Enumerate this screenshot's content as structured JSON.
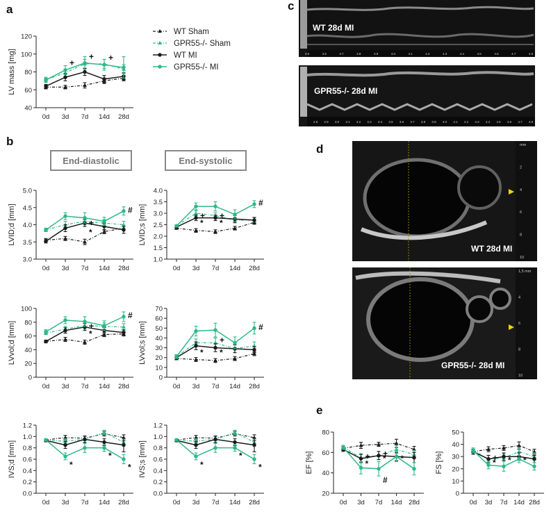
{
  "colors": {
    "black": "#1a1a1a",
    "green": "#2db88a",
    "gray": "#7a7a7a"
  },
  "panel_letters": {
    "a": "a",
    "b": "b",
    "c": "c",
    "d": "d",
    "e": "e"
  },
  "section_headers": {
    "end_diastolic": "End-diastolic",
    "end_systolic": "End-systolic"
  },
  "legend": [
    {
      "label": "WT Sham",
      "series": "wt_sham"
    },
    {
      "label": "GPR55-/- Sham",
      "series": "ko_sham"
    },
    {
      "label": "WT MI",
      "series": "wt_mi"
    },
    {
      "label": "GPR55-/- MI",
      "series": "ko_mi"
    }
  ],
  "echo_images": {
    "mmode_wt": "WT 28d MI",
    "mmode_ko": "GPR55-/- 28d MI",
    "bmode_wt": "WT 28d MI",
    "bmode_ko": "GPR55-/- 28d MI",
    "mmode_top_ticks": [
      "3.5",
      "3.6",
      "3.7",
      "3.8",
      "3.9",
      "4.0",
      "4.1",
      "4.2",
      "4.3",
      "4.4",
      "4.5",
      "4.6",
      "4.7",
      "4.8"
    ],
    "mmode_bottom_ticks": [
      "2.8",
      "2.9",
      "3.0",
      "3.1",
      "3.2",
      "3.3",
      "3.4",
      "3.5",
      "3.6",
      "3.7",
      "3.8",
      "3.9",
      "4.0",
      "4.1",
      "4.2",
      "4.3",
      "4.4",
      "4.5",
      "4.6",
      "4.7",
      "4.8"
    ],
    "bmode_top_scale": [
      "mm",
      "2",
      "4",
      "6",
      "8",
      "10"
    ],
    "bmode_bottom_scale": [
      "1,5 mm",
      "4",
      "6",
      "8",
      "10"
    ]
  },
  "chart_data": [
    {
      "id": "lvmass",
      "type": "line",
      "ylabel": "LV mass [mg]",
      "categories": [
        "0d",
        "3d",
        "7d",
        "14d",
        "28d"
      ],
      "ylim": [
        40,
        120
      ],
      "yticks": [
        "40",
        "60",
        "80",
        "100",
        "120"
      ],
      "series": [
        {
          "name": "WT Sham",
          "key": "wt_sham",
          "values": [
            63,
            63,
            65,
            70,
            73
          ],
          "err": [
            2,
            2,
            3,
            3,
            3
          ]
        },
        {
          "name": "GPR55-/- Sham",
          "key": "ko_sham",
          "values": [
            71,
            79,
            89,
            89,
            83
          ],
          "err": [
            2,
            4,
            5,
            5,
            5
          ]
        },
        {
          "name": "WT MI",
          "key": "wt_mi",
          "values": [
            64,
            74,
            80,
            72,
            75
          ],
          "err": [
            2,
            4,
            4,
            4,
            4
          ]
        },
        {
          "name": "GPR55-/- MI",
          "key": "ko_mi",
          "values": [
            71,
            82,
            90,
            88,
            85
          ],
          "err": [
            3,
            5,
            7,
            6,
            12
          ]
        }
      ],
      "annotations": [
        {
          "text": "+",
          "x": 1,
          "y": 90
        },
        {
          "text": "+",
          "x": 2,
          "y": 97
        },
        {
          "text": "+",
          "x": 3,
          "y": 96
        }
      ]
    },
    {
      "id": "lvidd",
      "type": "line",
      "ylabel": "LVID;d [mm]",
      "categories": [
        "0d",
        "3d",
        "7d",
        "14d",
        "28d"
      ],
      "ylim": [
        3.0,
        5.0
      ],
      "yticks": [
        "3.0",
        "3.5",
        "4.0",
        "4.5",
        "5.0"
      ],
      "series": [
        {
          "name": "WT Sham",
          "key": "wt_sham",
          "values": [
            3.55,
            3.6,
            3.5,
            3.8,
            3.9
          ],
          "err": [
            0.05,
            0.06,
            0.08,
            0.06,
            0.06
          ]
        },
        {
          "name": "GPR55-/- Sham",
          "key": "ko_sham",
          "values": [
            3.85,
            4.0,
            4.1,
            4.05,
            4.0
          ],
          "err": [
            0.05,
            0.1,
            0.1,
            0.1,
            0.1
          ]
        },
        {
          "name": "WT MI",
          "key": "wt_mi",
          "values": [
            3.52,
            3.9,
            4.05,
            3.95,
            3.85
          ],
          "err": [
            0.05,
            0.1,
            0.1,
            0.1,
            0.1
          ]
        },
        {
          "name": "GPR55-/- MI",
          "key": "ko_mi",
          "values": [
            3.85,
            4.25,
            4.2,
            4.1,
            4.4
          ],
          "err": [
            0.05,
            0.1,
            0.15,
            0.12,
            0.12
          ]
        }
      ],
      "annotations": [
        {
          "text": "+",
          "x": 2,
          "y": 4.05
        },
        {
          "text": "*",
          "x": 2,
          "y": 3.78
        },
        {
          "text": "#",
          "x": 4,
          "y": 4.42
        }
      ]
    },
    {
      "id": "lvids",
      "type": "line",
      "ylabel": "LVID;s [mm]",
      "categories": [
        "0d",
        "3d",
        "7d",
        "14d",
        "28d"
      ],
      "ylim": [
        1.0,
        4.0
      ],
      "yticks": [
        "1.0",
        "1.5",
        "2.0",
        "2.5",
        "3.0",
        "3.5",
        "4.0"
      ],
      "series": [
        {
          "name": "WT Sham",
          "key": "wt_sham",
          "values": [
            2.35,
            2.25,
            2.2,
            2.35,
            2.6
          ],
          "err": [
            0.05,
            0.08,
            0.08,
            0.08,
            0.08
          ]
        },
        {
          "name": "GPR55-/- Sham",
          "key": "ko_sham",
          "values": [
            2.45,
            3.0,
            2.9,
            2.7,
            2.7
          ],
          "err": [
            0.05,
            0.12,
            0.12,
            0.12,
            0.1
          ]
        },
        {
          "name": "WT MI",
          "key": "wt_mi",
          "values": [
            2.4,
            2.8,
            2.8,
            2.75,
            2.7
          ],
          "err": [
            0.05,
            0.12,
            0.12,
            0.15,
            0.12
          ]
        },
        {
          "name": "GPR55-/- MI",
          "key": "ko_mi",
          "values": [
            2.45,
            3.3,
            3.3,
            2.95,
            3.4
          ],
          "err": [
            0.05,
            0.15,
            0.2,
            0.2,
            0.15
          ]
        }
      ],
      "annotations": [
        {
          "text": "+",
          "x": 1,
          "y": 2.9
        },
        {
          "text": "*",
          "x": 1,
          "y": 2.58
        },
        {
          "text": "+",
          "x": 2,
          "y": 2.9
        },
        {
          "text": "*",
          "x": 2,
          "y": 2.58
        },
        {
          "text": "#",
          "x": 4,
          "y": 3.45
        }
      ]
    },
    {
      "id": "lvvold",
      "type": "line",
      "ylabel": "LVvol;d [mm]",
      "categories": [
        "0d",
        "3d",
        "7d",
        "14d",
        "28d"
      ],
      "ylim": [
        0,
        100
      ],
      "yticks": [
        "0",
        "20",
        "40",
        "60",
        "80",
        "100"
      ],
      "series": [
        {
          "name": "WT Sham",
          "key": "wt_sham",
          "values": [
            52,
            55,
            51,
            62,
            63
          ],
          "err": [
            2,
            3,
            3,
            3,
            3
          ]
        },
        {
          "name": "GPR55-/- Sham",
          "key": "ko_sham",
          "values": [
            64,
            70,
            75,
            74,
            73
          ],
          "err": [
            2,
            4,
            5,
            5,
            5
          ]
        },
        {
          "name": "WT MI",
          "key": "wt_mi",
          "values": [
            52,
            68,
            73,
            68,
            65
          ],
          "err": [
            2,
            4,
            5,
            5,
            4
          ]
        },
        {
          "name": "GPR55-/- MI",
          "key": "ko_mi",
          "values": [
            66,
            83,
            81,
            75,
            88
          ],
          "err": [
            3,
            5,
            7,
            7,
            7
          ]
        }
      ],
      "annotations": [
        {
          "text": "+",
          "x": 2,
          "y": 74
        },
        {
          "text": "*",
          "x": 2,
          "y": 63
        },
        {
          "text": "#",
          "x": 4,
          "y": 90
        }
      ]
    },
    {
      "id": "lvvols",
      "type": "line",
      "ylabel": "LVvol;s [mm]",
      "categories": [
        "0d",
        "3d",
        "7d",
        "14d",
        "28d"
      ],
      "ylim": [
        0,
        70
      ],
      "yticks": [
        "0",
        "10",
        "20",
        "30",
        "40",
        "50",
        "60",
        "70"
      ],
      "series": [
        {
          "name": "WT Sham",
          "key": "wt_sham",
          "values": [
            19,
            18,
            17,
            19,
            24
          ],
          "err": [
            1,
            2,
            2,
            2,
            2
          ]
        },
        {
          "name": "GPR55-/- Sham",
          "key": "ko_sham",
          "values": [
            21,
            35,
            35,
            29,
            32
          ],
          "err": [
            2,
            4,
            5,
            4,
            4
          ]
        },
        {
          "name": "WT MI",
          "key": "wt_mi",
          "values": [
            20,
            32,
            30,
            29,
            28
          ],
          "err": [
            2,
            4,
            4,
            4,
            3
          ]
        },
        {
          "name": "GPR55-/- MI",
          "key": "ko_mi",
          "values": [
            21,
            47,
            48,
            35,
            50
          ],
          "err": [
            2,
            5,
            7,
            6,
            6
          ]
        }
      ],
      "annotations": [
        {
          "text": "*",
          "x": 1,
          "y": 25
        },
        {
          "text": "+",
          "x": 2,
          "y": 38
        },
        {
          "text": "*",
          "x": 2,
          "y": 25
        },
        {
          "text": "#",
          "x": 4,
          "y": 51
        }
      ]
    },
    {
      "id": "ivsd",
      "type": "line",
      "ylabel": "IVS;d [mm]",
      "categories": [
        "0d",
        "3d",
        "7d",
        "14d",
        "28d"
      ],
      "ylim": [
        0.0,
        1.2
      ],
      "yticks": [
        "0.0",
        "0.2",
        "0.4",
        "0.6",
        "0.8",
        "1.0",
        "1.2"
      ],
      "series": [
        {
          "name": "WT Sham",
          "key": "wt_sham",
          "values": [
            0.94,
            0.98,
            0.97,
            1.05,
            0.98
          ],
          "err": [
            0.02,
            0.04,
            0.04,
            0.04,
            0.05
          ]
        },
        {
          "name": "GPR55-/- Sham",
          "key": "ko_sham",
          "values": [
            0.93,
            0.92,
            0.95,
            1.07,
            0.9
          ],
          "err": [
            0.02,
            0.04,
            0.05,
            0.04,
            0.06
          ]
        },
        {
          "name": "WT MI",
          "key": "wt_mi",
          "values": [
            0.93,
            0.85,
            0.95,
            0.9,
            0.85
          ],
          "err": [
            0.02,
            0.06,
            0.06,
            0.06,
            0.12
          ]
        },
        {
          "name": "GPR55-/- MI",
          "key": "ko_mi",
          "values": [
            0.94,
            0.65,
            0.8,
            0.8,
            0.6
          ],
          "err": [
            0.02,
            0.06,
            0.08,
            0.06,
            0.08
          ]
        }
      ],
      "annotations": [
        {
          "text": "*",
          "x": 1,
          "y": 0.5
        },
        {
          "text": "*",
          "x": 3,
          "y": 0.66
        },
        {
          "text": "*",
          "x": 4,
          "y": 0.46
        }
      ]
    },
    {
      "id": "ivss",
      "type": "line",
      "ylabel": "IVS;s [mm]",
      "categories": [
        "0d",
        "3d",
        "7d",
        "14d",
        "28d"
      ],
      "ylim": [
        0.0,
        1.2
      ],
      "yticks": [
        "0.0",
        "0.2",
        "0.4",
        "0.6",
        "0.8",
        "1.0",
        "1.2"
      ],
      "series": [
        {
          "name": "WT Sham",
          "key": "wt_sham",
          "values": [
            0.94,
            0.98,
            0.97,
            1.05,
            0.98
          ],
          "err": [
            0.02,
            0.04,
            0.04,
            0.04,
            0.05
          ]
        },
        {
          "name": "GPR55-/- Sham",
          "key": "ko_sham",
          "values": [
            0.93,
            0.92,
            0.95,
            1.07,
            0.9
          ],
          "err": [
            0.02,
            0.04,
            0.05,
            0.04,
            0.06
          ]
        },
        {
          "name": "WT MI",
          "key": "wt_mi",
          "values": [
            0.93,
            0.85,
            0.95,
            0.9,
            0.85
          ],
          "err": [
            0.02,
            0.06,
            0.06,
            0.06,
            0.12
          ]
        },
        {
          "name": "GPR55-/- MI",
          "key": "ko_mi",
          "values": [
            0.94,
            0.65,
            0.8,
            0.8,
            0.6
          ],
          "err": [
            0.02,
            0.06,
            0.08,
            0.06,
            0.08
          ]
        }
      ],
      "annotations": [
        {
          "text": "*",
          "x": 1,
          "y": 0.5
        },
        {
          "text": "*",
          "x": 3,
          "y": 0.66
        },
        {
          "text": "*",
          "x": 4,
          "y": 0.46
        }
      ]
    },
    {
      "id": "ef",
      "type": "line",
      "ylabel": "EF [%]",
      "categories": [
        "0d",
        "3d",
        "7d",
        "14d",
        "28d"
      ],
      "ylim": [
        20,
        80
      ],
      "yticks": [
        "20",
        "40",
        "60",
        "80"
      ],
      "series": [
        {
          "name": "WT Sham",
          "key": "wt_sham",
          "values": [
            64,
            67,
            68,
            69,
            63
          ],
          "err": [
            2,
            3,
            2,
            4,
            3
          ]
        },
        {
          "name": "GPR55-/- Sham",
          "key": "ko_sham",
          "values": [
            65,
            55,
            57,
            63,
            58
          ],
          "err": [
            2,
            4,
            4,
            4,
            4
          ]
        },
        {
          "name": "WT MI",
          "key": "wt_mi",
          "values": [
            63,
            54,
            57,
            56,
            55
          ],
          "err": [
            2,
            4,
            4,
            4,
            5
          ]
        },
        {
          "name": "GPR55-/- MI",
          "key": "ko_mi",
          "values": [
            65,
            45,
            44,
            56,
            44
          ],
          "err": [
            2,
            6,
            7,
            5,
            6
          ]
        }
      ],
      "annotations": [
        {
          "text": "+",
          "x": 1,
          "y": 56
        },
        {
          "text": "*",
          "x": 1,
          "y": 49
        },
        {
          "text": "+",
          "x": 2,
          "y": 59
        },
        {
          "text": "*",
          "x": 2,
          "y": 54
        },
        {
          "text": "#",
          "x": 2,
          "y": 33
        },
        {
          "text": "*",
          "x": 3,
          "y": 54
        }
      ]
    },
    {
      "id": "fs",
      "type": "line",
      "ylabel": "FS [%]",
      "categories": [
        "0d",
        "3d",
        "7d",
        "14d",
        "28d"
      ],
      "ylim": [
        0,
        50
      ],
      "yticks": [
        "0",
        "10",
        "20",
        "30",
        "40",
        "50"
      ],
      "series": [
        {
          "name": "WT Sham",
          "key": "wt_sham",
          "values": [
            34,
            36,
            37,
            39,
            34
          ],
          "err": [
            2,
            2,
            2,
            3,
            2
          ]
        },
        {
          "name": "GPR55-/- Sham",
          "key": "ko_sham",
          "values": [
            35,
            28,
            29,
            34,
            30
          ],
          "err": [
            2,
            3,
            3,
            3,
            3
          ]
        },
        {
          "name": "WT MI",
          "key": "wt_mi",
          "values": [
            34,
            28,
            30,
            30,
            28
          ],
          "err": [
            2,
            3,
            3,
            3,
            3
          ]
        },
        {
          "name": "GPR55-/- MI",
          "key": "ko_mi",
          "values": [
            35,
            23,
            22,
            28,
            22
          ],
          "err": [
            2,
            3,
            4,
            3,
            3
          ]
        }
      ],
      "annotations": [
        {
          "text": "+",
          "x": 1,
          "y": 29
        },
        {
          "text": "*",
          "x": 1,
          "y": 25
        },
        {
          "text": "*",
          "x": 2,
          "y": 27
        },
        {
          "text": "*",
          "x": 3,
          "y": 27
        }
      ]
    }
  ]
}
